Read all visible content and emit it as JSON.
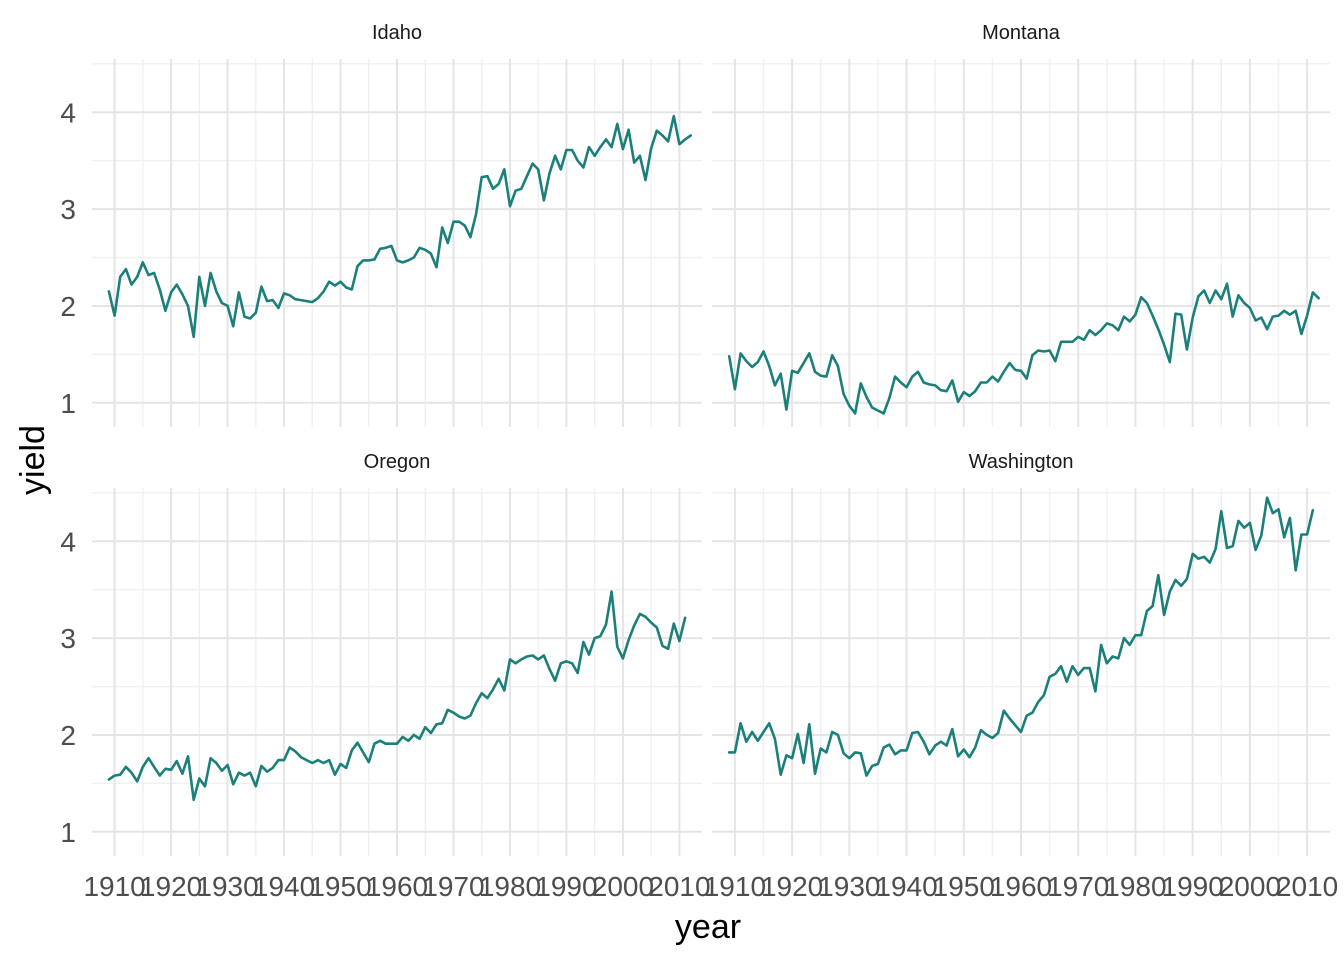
{
  "chart_data": {
    "type": "line",
    "xlabel": "year",
    "ylabel": "yield",
    "xlim": [
      1906,
      2014
    ],
    "ylim": [
      0.75,
      4.55
    ],
    "x_ticks": [
      1910,
      1920,
      1930,
      1940,
      1950,
      1960,
      1970,
      1980,
      1990,
      2000,
      2010
    ],
    "y_ticks": [
      1,
      2,
      3,
      4
    ],
    "grid": true,
    "line_color": "#1b7f7a",
    "x_start": 1909,
    "panels": [
      {
        "title": "Idaho",
        "y": [
          2.15,
          1.9,
          2.3,
          2.38,
          2.22,
          2.3,
          2.45,
          2.32,
          2.34,
          2.17,
          1.95,
          2.14,
          2.22,
          2.12,
          2.0,
          1.68,
          2.3,
          2.0,
          2.34,
          2.15,
          2.03,
          2.0,
          1.79,
          2.14,
          1.89,
          1.87,
          1.93,
          2.2,
          2.05,
          2.06,
          1.98,
          2.13,
          2.11,
          2.07,
          2.06,
          2.05,
          2.04,
          2.08,
          2.15,
          2.25,
          2.21,
          2.25,
          2.19,
          2.17,
          2.41,
          2.47,
          2.47,
          2.48,
          2.59,
          2.6,
          2.62,
          2.47,
          2.45,
          2.47,
          2.5,
          2.6,
          2.58,
          2.54,
          2.4,
          2.81,
          2.65,
          2.87,
          2.87,
          2.83,
          2.71,
          2.95,
          3.33,
          3.34,
          3.21,
          3.26,
          3.41,
          3.03,
          3.19,
          3.21,
          3.34,
          3.47,
          3.41,
          3.09,
          3.37,
          3.55,
          3.41,
          3.61,
          3.61,
          3.5,
          3.43,
          3.64,
          3.55,
          3.64,
          3.72,
          3.64,
          3.88,
          3.62,
          3.82,
          3.48,
          3.55,
          3.3,
          3.63,
          3.81,
          3.76,
          3.7,
          3.96,
          3.67,
          3.72,
          3.76
        ]
      },
      {
        "title": "Montana",
        "y": [
          1.48,
          1.14,
          1.51,
          1.43,
          1.37,
          1.42,
          1.53,
          1.38,
          1.18,
          1.3,
          0.93,
          1.33,
          1.31,
          1.41,
          1.51,
          1.32,
          1.28,
          1.27,
          1.49,
          1.38,
          1.09,
          0.97,
          0.89,
          1.2,
          1.06,
          0.95,
          0.92,
          0.89,
          1.05,
          1.27,
          1.21,
          1.16,
          1.27,
          1.32,
          1.21,
          1.19,
          1.18,
          1.13,
          1.12,
          1.23,
          1.01,
          1.11,
          1.07,
          1.12,
          1.21,
          1.21,
          1.27,
          1.22,
          1.32,
          1.41,
          1.34,
          1.33,
          1.25,
          1.49,
          1.54,
          1.53,
          1.54,
          1.43,
          1.63,
          1.63,
          1.63,
          1.68,
          1.65,
          1.75,
          1.7,
          1.75,
          1.82,
          1.8,
          1.75,
          1.89,
          1.84,
          1.91,
          2.09,
          2.03,
          1.9,
          1.76,
          1.6,
          1.42,
          1.92,
          1.91,
          1.55,
          1.88,
          2.1,
          2.16,
          2.03,
          2.16,
          2.07,
          2.23,
          1.89,
          2.11,
          2.03,
          1.98,
          1.85,
          1.88,
          1.76,
          1.89,
          1.9,
          1.95,
          1.91,
          1.95,
          1.71,
          1.9,
          2.14,
          2.08
        ]
      },
      {
        "title": "Oregon",
        "y": [
          1.54,
          1.58,
          1.59,
          1.67,
          1.61,
          1.52,
          1.67,
          1.76,
          1.67,
          1.58,
          1.65,
          1.64,
          1.73,
          1.6,
          1.78,
          1.33,
          1.55,
          1.47,
          1.76,
          1.71,
          1.63,
          1.69,
          1.49,
          1.61,
          1.58,
          1.61,
          1.47,
          1.68,
          1.62,
          1.66,
          1.74,
          1.74,
          1.87,
          1.83,
          1.77,
          1.74,
          1.71,
          1.74,
          1.71,
          1.74,
          1.59,
          1.7,
          1.66,
          1.84,
          1.92,
          1.82,
          1.72,
          1.91,
          1.94,
          1.91,
          1.91,
          1.91,
          1.98,
          1.94,
          2.0,
          1.96,
          2.08,
          2.02,
          2.11,
          2.12,
          2.26,
          2.23,
          2.19,
          2.17,
          2.2,
          2.33,
          2.43,
          2.38,
          2.47,
          2.58,
          2.46,
          2.78,
          2.74,
          2.78,
          2.81,
          2.82,
          2.78,
          2.82,
          2.68,
          2.56,
          2.74,
          2.76,
          2.74,
          2.64,
          2.96,
          2.83,
          3.0,
          3.02,
          3.14,
          3.48,
          2.91,
          2.79,
          2.98,
          3.13,
          3.25,
          3.22,
          3.16,
          3.11,
          2.92,
          2.89,
          3.15,
          2.97,
          3.21
        ]
      },
      {
        "title": "Washington",
        "y": [
          1.82,
          1.82,
          2.12,
          1.93,
          2.03,
          1.94,
          2.03,
          2.12,
          1.96,
          1.59,
          1.79,
          1.76,
          2.01,
          1.71,
          2.11,
          1.6,
          1.86,
          1.82,
          2.03,
          2.0,
          1.81,
          1.76,
          1.82,
          1.81,
          1.58,
          1.68,
          1.7,
          1.87,
          1.9,
          1.8,
          1.84,
          1.84,
          2.02,
          2.03,
          1.93,
          1.8,
          1.89,
          1.93,
          1.89,
          2.06,
          1.78,
          1.85,
          1.77,
          1.87,
          2.05,
          2.0,
          1.97,
          2.02,
          2.25,
          2.17,
          2.1,
          2.03,
          2.2,
          2.23,
          2.34,
          2.41,
          2.6,
          2.63,
          2.71,
          2.55,
          2.71,
          2.62,
          2.69,
          2.69,
          2.45,
          2.93,
          2.74,
          2.81,
          2.79,
          3.0,
          2.93,
          3.03,
          3.03,
          3.28,
          3.33,
          3.65,
          3.24,
          3.48,
          3.6,
          3.54,
          3.61,
          3.87,
          3.82,
          3.84,
          3.78,
          3.92,
          4.31,
          3.93,
          3.95,
          4.21,
          4.14,
          4.19,
          3.91,
          4.06,
          4.45,
          4.29,
          4.33,
          4.04,
          4.24,
          3.7,
          4.07,
          4.07,
          4.32
        ]
      }
    ]
  }
}
